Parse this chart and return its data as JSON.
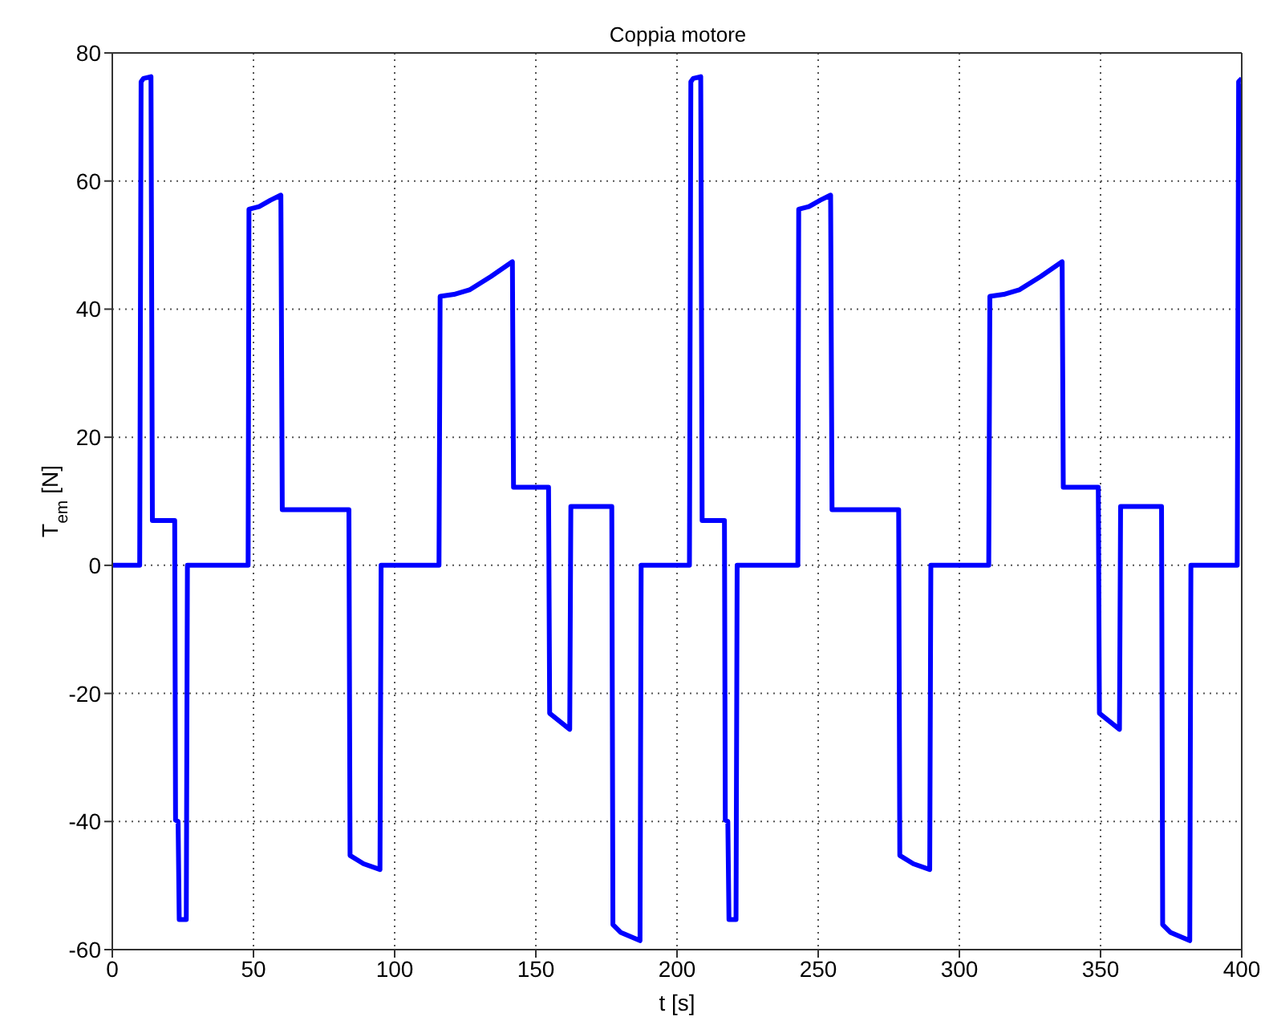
{
  "chart_data": {
    "type": "line",
    "title": "Coppia motore",
    "xlabel": "t [s]",
    "ylabel": "T$_{em}$ [N]",
    "x": [
      0,
      9.7,
      10.2,
      11,
      13.7,
      14.2,
      22.1,
      22.4,
      23.3,
      23.7,
      26.2,
      26.6,
      48.1,
      48.4,
      52,
      56,
      59.7,
      60.2,
      83.8,
      84.2,
      89,
      94.8,
      95.2,
      115.7,
      116.1,
      121,
      126.5,
      134.1,
      141.7,
      142.1,
      154.5,
      154.9,
      162,
      162.4,
      176.9,
      177.3,
      180,
      186.9,
      187.3,
      204.4,
      204.9,
      205.7,
      208.4,
      208.9,
      216.8,
      217.1,
      218,
      218.4,
      220.9,
      221.3,
      242.8,
      243.1,
      246.7,
      250.7,
      254.4,
      254.9,
      278.5,
      278.9,
      283.7,
      289.5,
      289.9,
      310.4,
      310.8,
      315.7,
      321.2,
      328.8,
      336.4,
      336.8,
      349.2,
      349.6,
      356.7,
      357.1,
      371.6,
      372,
      374.7,
      381.6,
      382,
      398.4,
      398.9,
      400
    ],
    "values": [
      0,
      0,
      75.5,
      76,
      76.3,
      7,
      7,
      -39.8,
      -40,
      -55.3,
      -55.3,
      0,
      0,
      55.6,
      56,
      57,
      57.8,
      8.7,
      8.7,
      -45.3,
      -46.6,
      -47.5,
      0,
      0,
      42,
      42.3,
      43,
      45.1,
      47.4,
      12.2,
      12.2,
      -23.1,
      -25.6,
      9.2,
      9.2,
      -56.1,
      -57.3,
      -58.6,
      0,
      0,
      75.5,
      76,
      76.3,
      7,
      7,
      -39.8,
      -40,
      -55.3,
      -55.3,
      0,
      0,
      55.6,
      56,
      57,
      57.8,
      8.7,
      8.7,
      -45.3,
      -46.6,
      -47.5,
      0,
      0,
      42,
      42.3,
      43,
      45.1,
      47.4,
      12.2,
      12.2,
      -23.1,
      -25.6,
      9.2,
      9.2,
      -56.1,
      -57.3,
      -58.6,
      0,
      0,
      75.5,
      76
    ],
    "color": "#0000ff",
    "xlim": [
      0,
      400
    ],
    "ylim": [
      -60,
      80
    ],
    "xticks": [
      0,
      50,
      100,
      150,
      200,
      250,
      300,
      350,
      400
    ],
    "yticks": [
      -60,
      -40,
      -20,
      0,
      20,
      40,
      60,
      80
    ],
    "grid": true,
    "marker": "none",
    "line_style": "solid"
  }
}
